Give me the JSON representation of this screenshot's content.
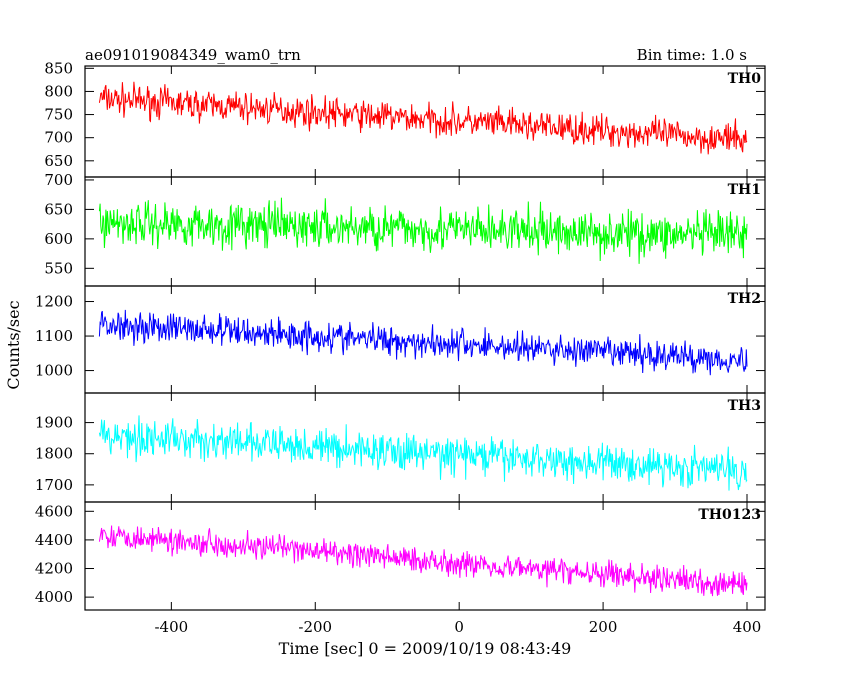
{
  "header": {
    "title": "ae091019084349_wam0_trn",
    "bin_time": "Bin time: 1.0 s"
  },
  "chart_data": {
    "type": "line",
    "xlabel": "Time [sec] 0 = 2009/10/19 08:43:49",
    "ylabel": "Counts/sec",
    "xlim": [
      -520,
      425
    ],
    "x_range": [
      -500,
      400
    ],
    "x_step": 1,
    "xticks": [
      -400,
      -200,
      0,
      200,
      400
    ],
    "panels": [
      {
        "name": "TH0",
        "color": "#ff0000",
        "ylim": [
          615,
          855
        ],
        "yticks": [
          650,
          700,
          750,
          800,
          850
        ],
        "trend_start": 785,
        "trend_end": 695,
        "noise_amp": 22
      },
      {
        "name": "TH1",
        "color": "#00ff00",
        "ylim": [
          520,
          705
        ],
        "yticks": [
          550,
          600,
          650,
          700
        ],
        "trend_start": 628,
        "trend_end": 605,
        "noise_amp": 25
      },
      {
        "name": "TH2",
        "color": "#0000ff",
        "ylim": [
          935,
          1245
        ],
        "yticks": [
          1000,
          1100,
          1200
        ],
        "trend_start": 1135,
        "trend_end": 1030,
        "noise_amp": 30
      },
      {
        "name": "TH3",
        "color": "#00ffff",
        "ylim": [
          1645,
          1995
        ],
        "yticks": [
          1700,
          1800,
          1900
        ],
        "trend_start": 1860,
        "trend_end": 1745,
        "noise_amp": 40
      },
      {
        "name": "TH0123",
        "color": "#ff00ff",
        "ylim": [
          3910,
          4665
        ],
        "yticks": [
          4000,
          4200,
          4400,
          4600
        ],
        "trend_start": 4440,
        "trend_end": 4080,
        "noise_amp": 60
      }
    ]
  }
}
